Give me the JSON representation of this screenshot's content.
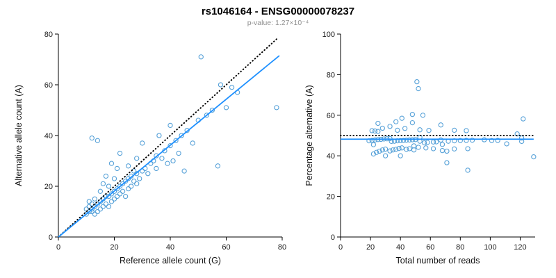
{
  "header": {
    "title": "rs1046164 - ENSG00000078237",
    "subtitle": "p-value: 1.27×10⁻⁴"
  },
  "colors": {
    "point": "#56a1d8",
    "fit_line": "#1E90FF",
    "identity_line": "#000000",
    "subtitle_text": "#8f8f8f"
  },
  "chart_data": [
    {
      "type": "scatter",
      "xlabel": "Reference allele count (G)",
      "ylabel": "Alternative allele count (A)",
      "xlim": [
        0,
        80
      ],
      "ylim": [
        0,
        80
      ],
      "xticks": [
        0,
        20,
        40,
        60,
        80
      ],
      "yticks": [
        0,
        20,
        40,
        60,
        80
      ],
      "grid": false,
      "points": [
        [
          10,
          9
        ],
        [
          10,
          11
        ],
        [
          11,
          10
        ],
        [
          11,
          12
        ],
        [
          11,
          14
        ],
        [
          12,
          10
        ],
        [
          12,
          11
        ],
        [
          12,
          13
        ],
        [
          12,
          39
        ],
        [
          13,
          9
        ],
        [
          13,
          12
        ],
        [
          13,
          15
        ],
        [
          14,
          10
        ],
        [
          14,
          13
        ],
        [
          14,
          38
        ],
        [
          15,
          11
        ],
        [
          15,
          14
        ],
        [
          15,
          18
        ],
        [
          16,
          12
        ],
        [
          16,
          15
        ],
        [
          16,
          21
        ],
        [
          17,
          13
        ],
        [
          17,
          16
        ],
        [
          17,
          24
        ],
        [
          18,
          12
        ],
        [
          18,
          16
        ],
        [
          18,
          20
        ],
        [
          19,
          14
        ],
        [
          19,
          17
        ],
        [
          19,
          29
        ],
        [
          20,
          15
        ],
        [
          20,
          18
        ],
        [
          20,
          23
        ],
        [
          21,
          16
        ],
        [
          21,
          19
        ],
        [
          21,
          27
        ],
        [
          22,
          17
        ],
        [
          22,
          20
        ],
        [
          22,
          33
        ],
        [
          23,
          18
        ],
        [
          23,
          21
        ],
        [
          24,
          16
        ],
        [
          24,
          22
        ],
        [
          25,
          19
        ],
        [
          25,
          23
        ],
        [
          25,
          28
        ],
        [
          26,
          20
        ],
        [
          26,
          24
        ],
        [
          27,
          22
        ],
        [
          27,
          26
        ],
        [
          28,
          21
        ],
        [
          28,
          25
        ],
        [
          28,
          31
        ],
        [
          29,
          23
        ],
        [
          30,
          26
        ],
        [
          30,
          37
        ],
        [
          31,
          27
        ],
        [
          32,
          25
        ],
        [
          33,
          29
        ],
        [
          34,
          30
        ],
        [
          35,
          27
        ],
        [
          35,
          32
        ],
        [
          36,
          40
        ],
        [
          37,
          31
        ],
        [
          38,
          34
        ],
        [
          39,
          29
        ],
        [
          40,
          36
        ],
        [
          40,
          44
        ],
        [
          41,
          30
        ],
        [
          42,
          38
        ],
        [
          43,
          33
        ],
        [
          44,
          40
        ],
        [
          45,
          26
        ],
        [
          46,
          42
        ],
        [
          48,
          37
        ],
        [
          50,
          46
        ],
        [
          51,
          71
        ],
        [
          53,
          48
        ],
        [
          55,
          50
        ],
        [
          57,
          28
        ],
        [
          58,
          60
        ],
        [
          60,
          51
        ],
        [
          62,
          59
        ],
        [
          64,
          57
        ],
        [
          78,
          51
        ]
      ],
      "lines": [
        {
          "name": "identity-line",
          "style": "dotted",
          "color": "#000000",
          "x": [
            0,
            78
          ],
          "y": [
            0,
            78
          ]
        },
        {
          "name": "fit-line",
          "style": "solid",
          "color": "#1E90FF",
          "x": [
            0,
            79
          ],
          "y": [
            0,
            71.5
          ]
        }
      ]
    },
    {
      "type": "scatter",
      "xlabel": "Total number of reads",
      "ylabel": "Percentage alternative (A)",
      "xlim": [
        0,
        130
      ],
      "ylim": [
        0,
        100
      ],
      "xticks": [
        0,
        20,
        40,
        60,
        80,
        100,
        120
      ],
      "yticks": [
        0,
        20,
        40,
        60,
        80,
        100
      ],
      "grid": false,
      "points": [
        [
          19,
          47.4
        ],
        [
          21,
          52.4
        ],
        [
          21,
          47.6
        ],
        [
          23,
          52.2
        ],
        [
          25,
          56.0
        ],
        [
          22,
          45.5
        ],
        [
          23,
          47.8
        ],
        [
          25,
          52.0
        ],
        [
          51,
          76.5
        ],
        [
          22,
          40.9
        ],
        [
          25,
          48.0
        ],
        [
          28,
          53.6
        ],
        [
          24,
          41.7
        ],
        [
          27,
          48.1
        ],
        [
          52,
          73.1
        ],
        [
          26,
          42.3
        ],
        [
          29,
          48.3
        ],
        [
          33,
          54.5
        ],
        [
          28,
          42.9
        ],
        [
          31,
          48.4
        ],
        [
          37,
          56.8
        ],
        [
          30,
          43.3
        ],
        [
          33,
          48.5
        ],
        [
          41,
          58.5
        ],
        [
          30,
          40.0
        ],
        [
          34,
          47.1
        ],
        [
          38,
          52.6
        ],
        [
          33,
          42.4
        ],
        [
          36,
          47.2
        ],
        [
          48,
          60.4
        ],
        [
          35,
          42.9
        ],
        [
          38,
          47.4
        ],
        [
          43,
          53.5
        ],
        [
          37,
          43.2
        ],
        [
          40,
          47.5
        ],
        [
          48,
          56.3
        ],
        [
          39,
          43.6
        ],
        [
          42,
          47.6
        ],
        [
          55,
          60.0
        ],
        [
          41,
          43.9
        ],
        [
          44,
          47.7
        ],
        [
          40,
          40.0
        ],
        [
          46,
          47.8
        ],
        [
          44,
          43.2
        ],
        [
          48,
          47.9
        ],
        [
          53,
          52.8
        ],
        [
          46,
          43.5
        ],
        [
          50,
          48.0
        ],
        [
          49,
          44.9
        ],
        [
          53,
          49.1
        ],
        [
          49,
          42.9
        ],
        [
          53,
          47.2
        ],
        [
          59,
          52.5
        ],
        [
          52,
          44.2
        ],
        [
          56,
          46.4
        ],
        [
          67,
          55.2
        ],
        [
          58,
          46.6
        ],
        [
          57,
          43.9
        ],
        [
          62,
          46.8
        ],
        [
          64,
          46.9
        ],
        [
          62,
          43.5
        ],
        [
          67,
          47.8
        ],
        [
          76,
          52.6
        ],
        [
          68,
          45.6
        ],
        [
          72,
          47.2
        ],
        [
          68,
          42.6
        ],
        [
          76,
          47.4
        ],
        [
          84,
          52.4
        ],
        [
          71,
          42.3
        ],
        [
          80,
          47.5
        ],
        [
          76,
          43.4
        ],
        [
          84,
          47.6
        ],
        [
          71,
          36.6
        ],
        [
          88,
          47.7
        ],
        [
          85,
          43.5
        ],
        [
          96,
          47.9
        ],
        [
          122,
          58.2
        ],
        [
          101,
          47.5
        ],
        [
          105,
          47.6
        ],
        [
          85,
          32.9
        ],
        [
          118,
          50.8
        ],
        [
          111,
          45.9
        ],
        [
          121,
          48.8
        ],
        [
          121,
          47.1
        ],
        [
          129,
          39.5
        ]
      ],
      "lines": [
        {
          "name": "null-line",
          "style": "dotted",
          "color": "#000000",
          "x": [
            0,
            129
          ],
          "y": [
            50,
            50
          ]
        },
        {
          "name": "fit-line",
          "style": "solid",
          "color": "#1E90FF",
          "x": [
            0,
            129
          ],
          "y": [
            48.2,
            48.2
          ]
        }
      ]
    }
  ]
}
